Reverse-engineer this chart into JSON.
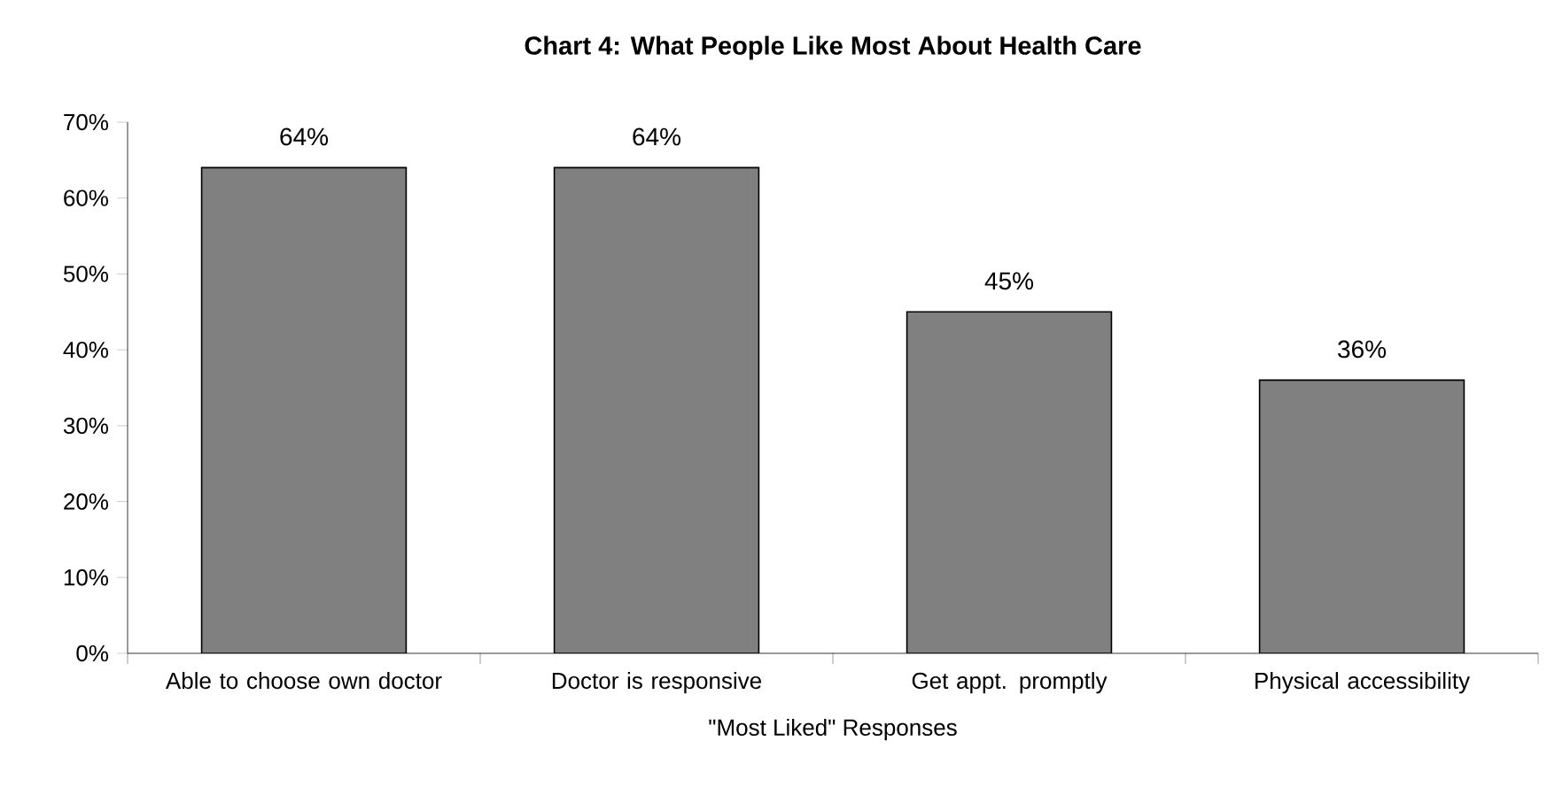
{
  "chart_data": {
    "type": "bar",
    "title": "Chart 4:  What People Like Most About Health Care",
    "xlabel": "\"Most Liked\" Responses",
    "categories": [
      "Able to choose own doctor",
      "Doctor is responsive",
      "Get appt. promptly",
      "Physical accessibility"
    ],
    "values": [
      64,
      64,
      45,
      36
    ],
    "color": "#808080",
    "value_labels": [
      "64%",
      "64%",
      "45%",
      "36%"
    ],
    "ylim": [
      0,
      70
    ],
    "yticks": [
      {
        "value": 0,
        "label": "0%"
      },
      {
        "value": 10,
        "label": "10%"
      },
      {
        "value": 20,
        "label": "20%"
      },
      {
        "value": 30,
        "label": "30%"
      },
      {
        "value": 40,
        "label": "40%"
      },
      {
        "value": 50,
        "label": "50%"
      },
      {
        "value": 60,
        "label": "60%"
      },
      {
        "value": 70,
        "label": "70%"
      }
    ],
    "grid": false
  }
}
